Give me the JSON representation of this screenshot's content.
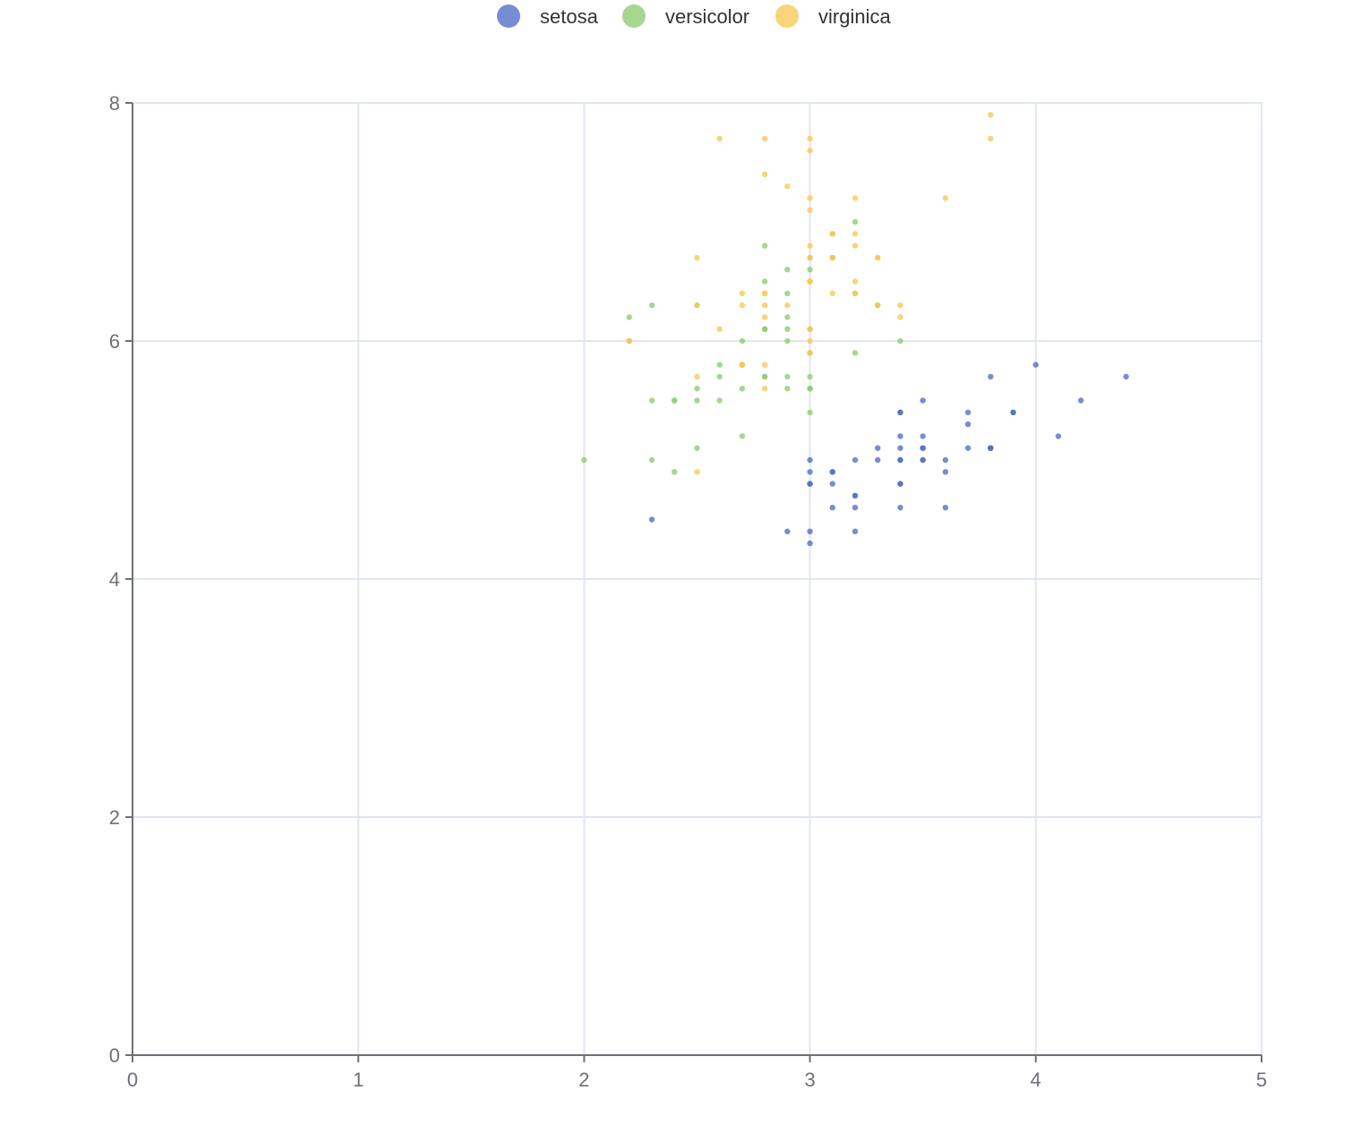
{
  "chart_data": {
    "type": "scatter",
    "title": "",
    "xlabel": "",
    "ylabel": "",
    "xlim": [
      0,
      5
    ],
    "ylim": [
      0,
      8
    ],
    "xticks": [
      "0",
      "1",
      "2",
      "3",
      "4",
      "5"
    ],
    "yticks": [
      "0",
      "2",
      "4",
      "6",
      "8"
    ],
    "grid": true,
    "legend_position": "top-center",
    "series": [
      {
        "name": "setosa",
        "color": "#5470c6",
        "points": [
          [
            3.5,
            5.1
          ],
          [
            3.0,
            4.9
          ],
          [
            3.2,
            4.7
          ],
          [
            3.1,
            4.6
          ],
          [
            3.6,
            5.0
          ],
          [
            3.9,
            5.4
          ],
          [
            3.4,
            4.6
          ],
          [
            3.4,
            5.0
          ],
          [
            2.9,
            4.4
          ],
          [
            3.1,
            4.9
          ],
          [
            3.7,
            5.4
          ],
          [
            3.4,
            4.8
          ],
          [
            3.0,
            4.8
          ],
          [
            3.0,
            4.3
          ],
          [
            4.0,
            5.8
          ],
          [
            4.4,
            5.7
          ],
          [
            3.9,
            5.4
          ],
          [
            3.5,
            5.1
          ],
          [
            3.8,
            5.7
          ],
          [
            3.8,
            5.1
          ],
          [
            3.4,
            5.4
          ],
          [
            3.7,
            5.1
          ],
          [
            3.6,
            4.6
          ],
          [
            3.3,
            5.1
          ],
          [
            3.4,
            4.8
          ],
          [
            3.0,
            5.0
          ],
          [
            3.4,
            5.0
          ],
          [
            3.5,
            5.2
          ],
          [
            3.4,
            5.2
          ],
          [
            3.2,
            4.7
          ],
          [
            3.1,
            4.8
          ],
          [
            3.4,
            5.4
          ],
          [
            4.1,
            5.2
          ],
          [
            4.2,
            5.5
          ],
          [
            3.1,
            4.9
          ],
          [
            3.2,
            5.0
          ],
          [
            3.5,
            5.5
          ],
          [
            3.6,
            4.9
          ],
          [
            3.0,
            4.4
          ],
          [
            3.4,
            5.1
          ],
          [
            3.5,
            5.0
          ],
          [
            2.3,
            4.5
          ],
          [
            3.2,
            4.4
          ],
          [
            3.5,
            5.0
          ],
          [
            3.8,
            5.1
          ],
          [
            3.0,
            4.8
          ],
          [
            3.8,
            5.1
          ],
          [
            3.2,
            4.6
          ],
          [
            3.7,
            5.3
          ],
          [
            3.3,
            5.0
          ]
        ]
      },
      {
        "name": "versicolor",
        "color": "#91cc75",
        "points": [
          [
            3.2,
            7.0
          ],
          [
            3.2,
            6.4
          ],
          [
            3.1,
            6.9
          ],
          [
            2.3,
            5.5
          ],
          [
            2.8,
            6.5
          ],
          [
            2.8,
            5.7
          ],
          [
            3.3,
            6.3
          ],
          [
            2.4,
            4.9
          ],
          [
            2.9,
            6.6
          ],
          [
            2.7,
            5.2
          ],
          [
            2.0,
            5.0
          ],
          [
            3.0,
            5.9
          ],
          [
            2.2,
            6.0
          ],
          [
            2.9,
            6.1
          ],
          [
            2.9,
            5.6
          ],
          [
            3.1,
            6.7
          ],
          [
            3.0,
            5.6
          ],
          [
            2.7,
            5.8
          ],
          [
            2.2,
            6.2
          ],
          [
            2.5,
            5.6
          ],
          [
            3.2,
            5.9
          ],
          [
            2.8,
            6.1
          ],
          [
            2.5,
            6.3
          ],
          [
            2.8,
            6.1
          ],
          [
            2.9,
            6.4
          ],
          [
            3.0,
            6.6
          ],
          [
            2.8,
            6.8
          ],
          [
            3.0,
            6.7
          ],
          [
            2.9,
            6.0
          ],
          [
            2.6,
            5.7
          ],
          [
            2.4,
            5.5
          ],
          [
            2.4,
            5.5
          ],
          [
            2.7,
            5.8
          ],
          [
            2.7,
            6.0
          ],
          [
            3.0,
            5.4
          ],
          [
            3.4,
            6.0
          ],
          [
            3.1,
            6.7
          ],
          [
            2.3,
            6.3
          ],
          [
            3.0,
            5.6
          ],
          [
            2.5,
            5.5
          ],
          [
            2.6,
            5.5
          ],
          [
            3.0,
            6.1
          ],
          [
            2.6,
            5.8
          ],
          [
            2.3,
            5.0
          ],
          [
            2.7,
            5.6
          ],
          [
            3.0,
            5.7
          ],
          [
            2.9,
            5.7
          ],
          [
            2.9,
            6.2
          ],
          [
            2.5,
            5.1
          ],
          [
            2.8,
            5.7
          ]
        ]
      },
      {
        "name": "virginica",
        "color": "#fac858",
        "points": [
          [
            3.3,
            6.3
          ],
          [
            2.7,
            5.8
          ],
          [
            3.0,
            7.1
          ],
          [
            2.9,
            6.3
          ],
          [
            3.0,
            6.5
          ],
          [
            3.0,
            7.6
          ],
          [
            2.5,
            4.9
          ],
          [
            2.9,
            7.3
          ],
          [
            2.5,
            6.7
          ],
          [
            3.6,
            7.2
          ],
          [
            3.2,
            6.5
          ],
          [
            2.7,
            6.4
          ],
          [
            3.0,
            6.8
          ],
          [
            2.5,
            5.7
          ],
          [
            2.8,
            5.8
          ],
          [
            3.2,
            6.4
          ],
          [
            3.0,
            6.5
          ],
          [
            3.8,
            7.7
          ],
          [
            2.6,
            7.7
          ],
          [
            2.2,
            6.0
          ],
          [
            3.2,
            6.9
          ],
          [
            2.8,
            5.6
          ],
          [
            2.8,
            7.7
          ],
          [
            2.7,
            6.3
          ],
          [
            3.3,
            6.7
          ],
          [
            3.2,
            7.2
          ],
          [
            2.8,
            6.2
          ],
          [
            3.0,
            6.1
          ],
          [
            2.8,
            6.4
          ],
          [
            3.0,
            7.2
          ],
          [
            2.8,
            7.4
          ],
          [
            3.8,
            7.9
          ],
          [
            2.8,
            6.4
          ],
          [
            2.8,
            6.3
          ],
          [
            2.6,
            6.1
          ],
          [
            3.0,
            7.7
          ],
          [
            3.4,
            6.3
          ],
          [
            3.1,
            6.4
          ],
          [
            3.0,
            6.0
          ],
          [
            3.1,
            6.9
          ],
          [
            3.1,
            6.7
          ],
          [
            3.1,
            6.9
          ],
          [
            2.7,
            5.8
          ],
          [
            3.2,
            6.8
          ],
          [
            3.3,
            6.7
          ],
          [
            3.0,
            6.7
          ],
          [
            2.5,
            6.3
          ],
          [
            3.0,
            6.5
          ],
          [
            3.4,
            6.2
          ],
          [
            3.0,
            5.9
          ]
        ]
      }
    ]
  }
}
